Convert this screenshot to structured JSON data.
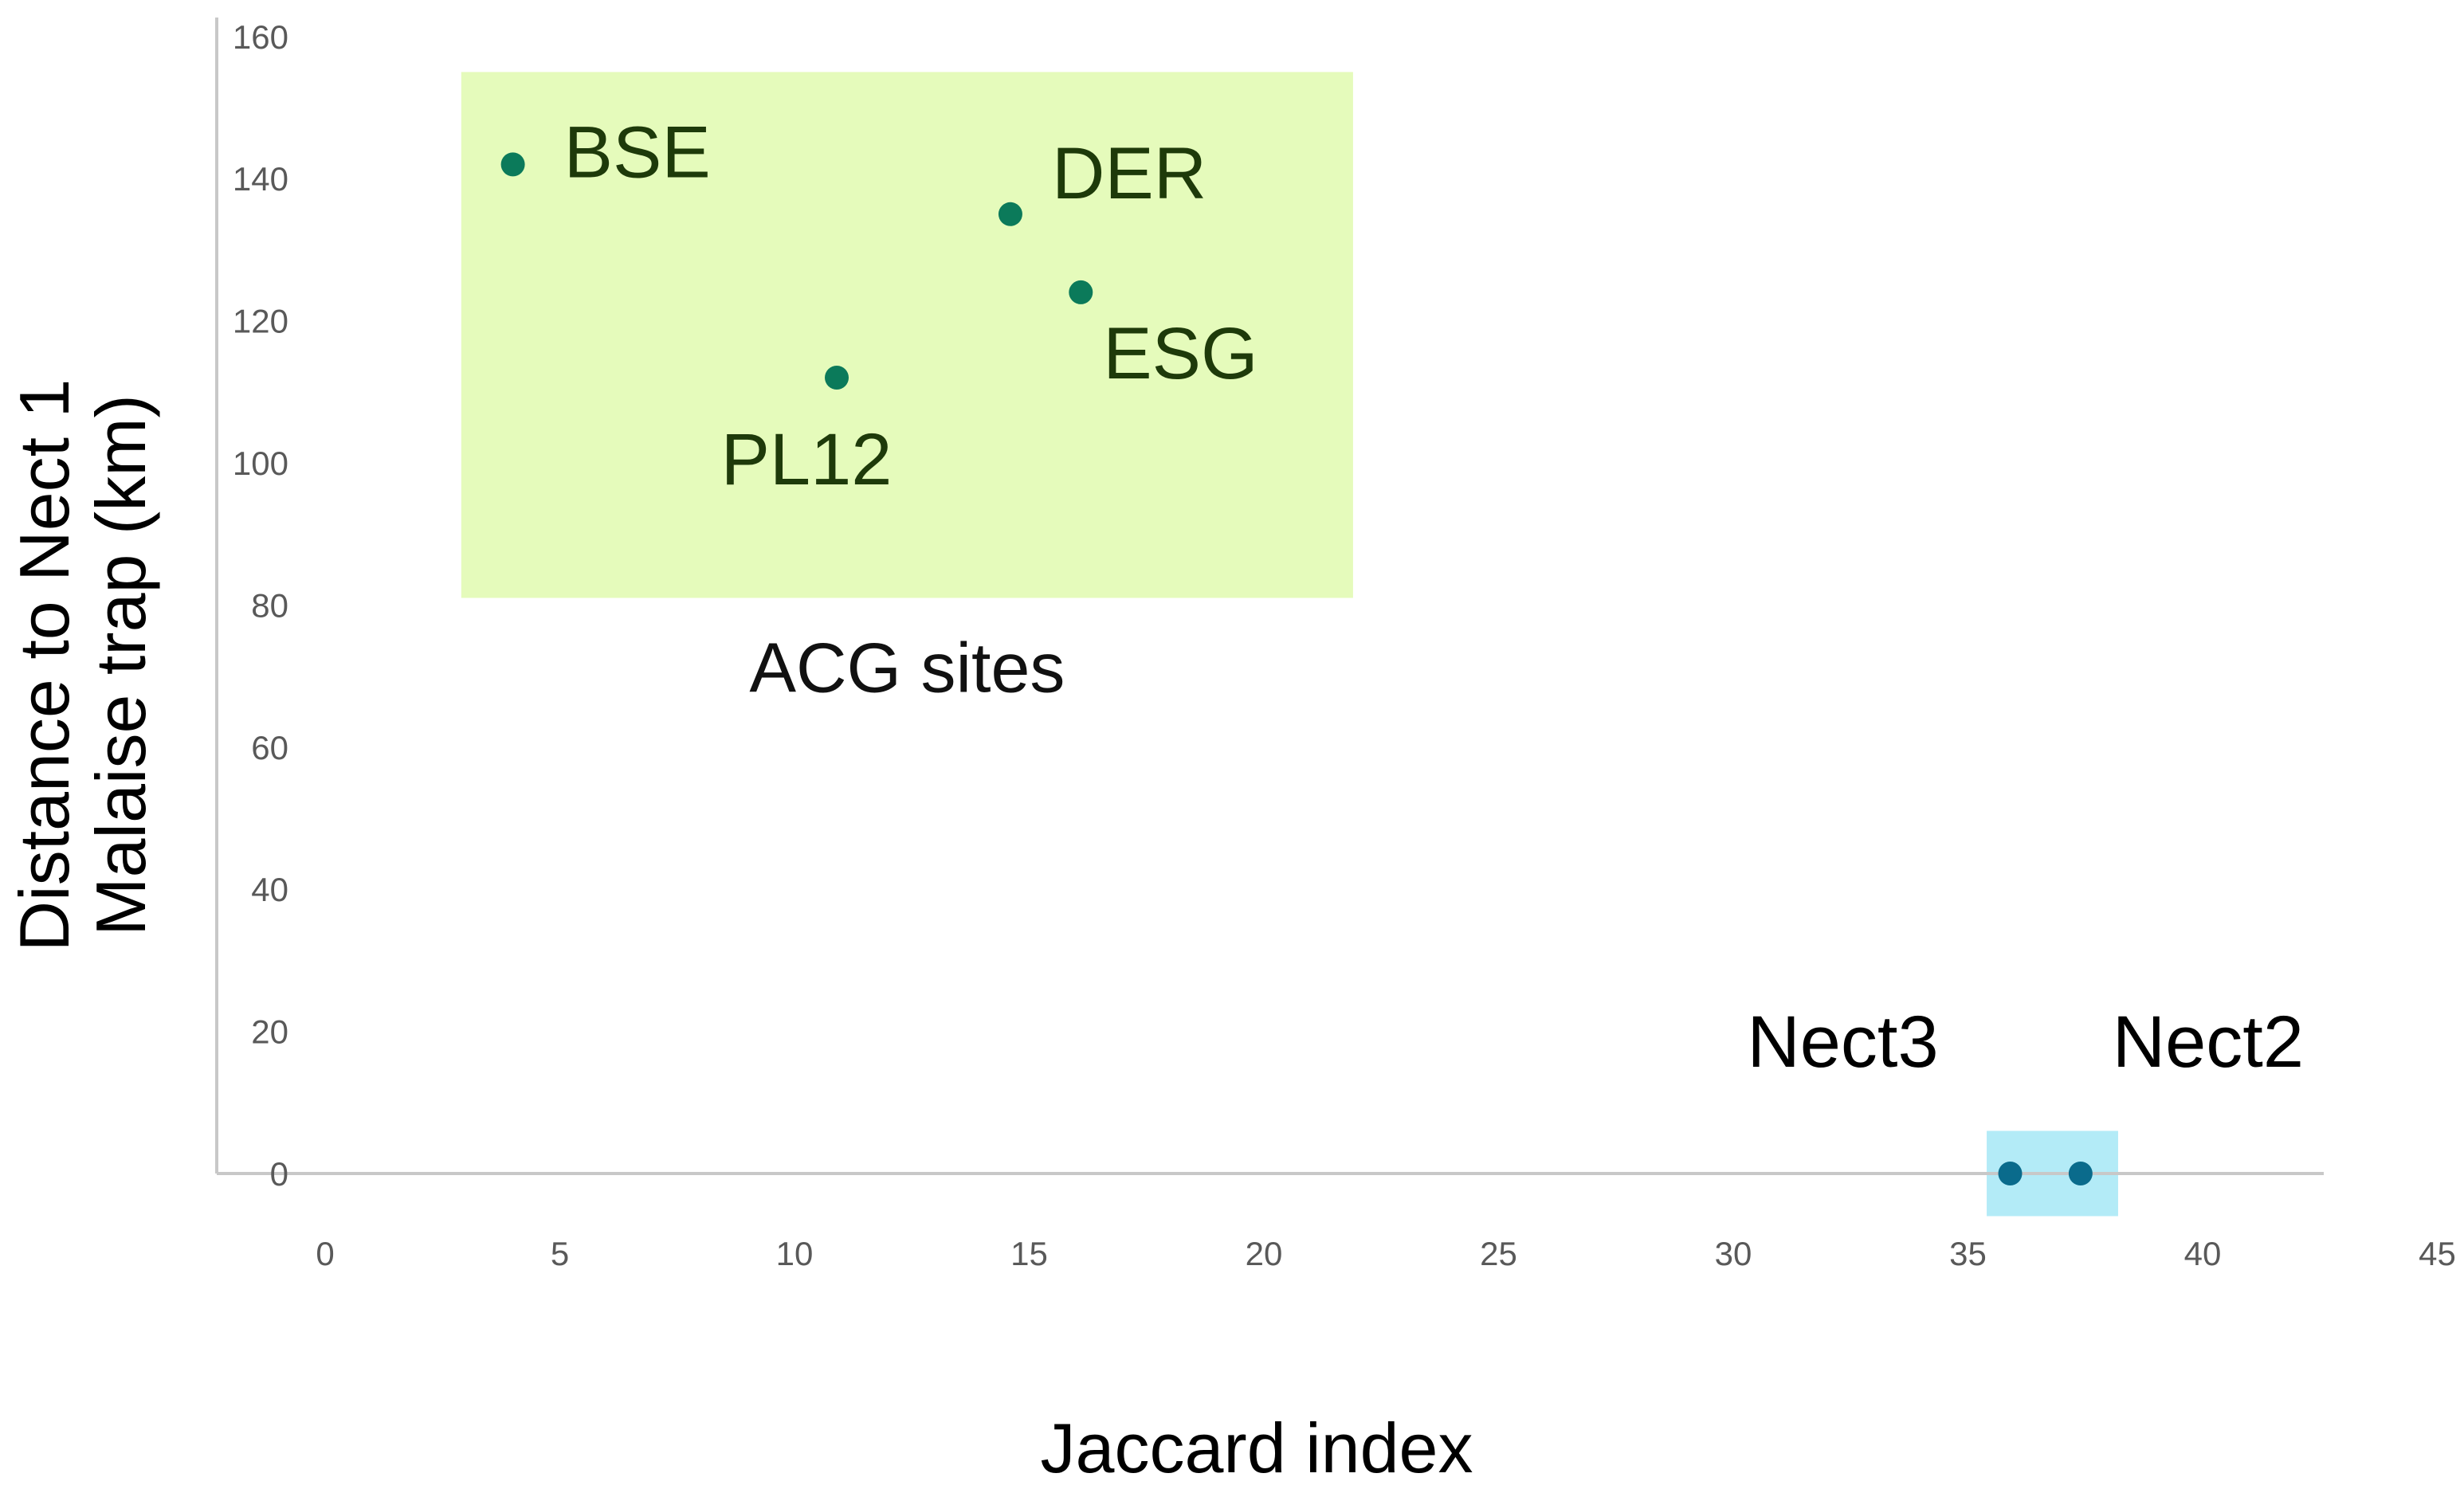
{
  "chart_data": {
    "type": "scatter",
    "title": "",
    "xlabel": "Jaccard index",
    "ylabel_lines": [
      "Distance to Nect 1",
      "Malaise trap (km)"
    ],
    "xlim": [
      0,
      45
    ],
    "ylim": [
      0,
      160
    ],
    "xticks": [
      0,
      5,
      10,
      15,
      20,
      25,
      30,
      35,
      40,
      45
    ],
    "yticks": [
      0,
      20,
      40,
      60,
      80,
      100,
      120,
      140,
      160
    ],
    "grid": false,
    "series": [
      {
        "points": [
          {
            "label": "BSE",
            "x": 4,
            "y": 142
          },
          {
            "label": "DER",
            "x": 14.6,
            "y": 135
          },
          {
            "label": "ESG",
            "x": 16.1,
            "y": 124
          },
          {
            "label": "PL12",
            "x": 10.9,
            "y": 112
          }
        ],
        "color": "#0b7a5a"
      },
      {
        "points": [
          {
            "label": "Nect3",
            "x": 35.9,
            "y": 0
          },
          {
            "label": "Nect2",
            "x": 37.4,
            "y": 0
          }
        ],
        "color": "#0a6b8c"
      }
    ],
    "groups": [
      {
        "label": "ACG sites",
        "x_range": [
          2.9,
          21.9
        ],
        "y_range": [
          81,
          155
        ],
        "fill": "#e5fbbb"
      },
      {
        "label": "",
        "x_range": [
          35.4,
          38.2
        ],
        "y_range": [
          -6,
          6
        ],
        "fill": "#b3ebf7"
      }
    ],
    "colors": {
      "acg_label_text": "#1e3a0a",
      "nect_label_text": "#000000",
      "axis_line": "#c8c8c8"
    }
  }
}
